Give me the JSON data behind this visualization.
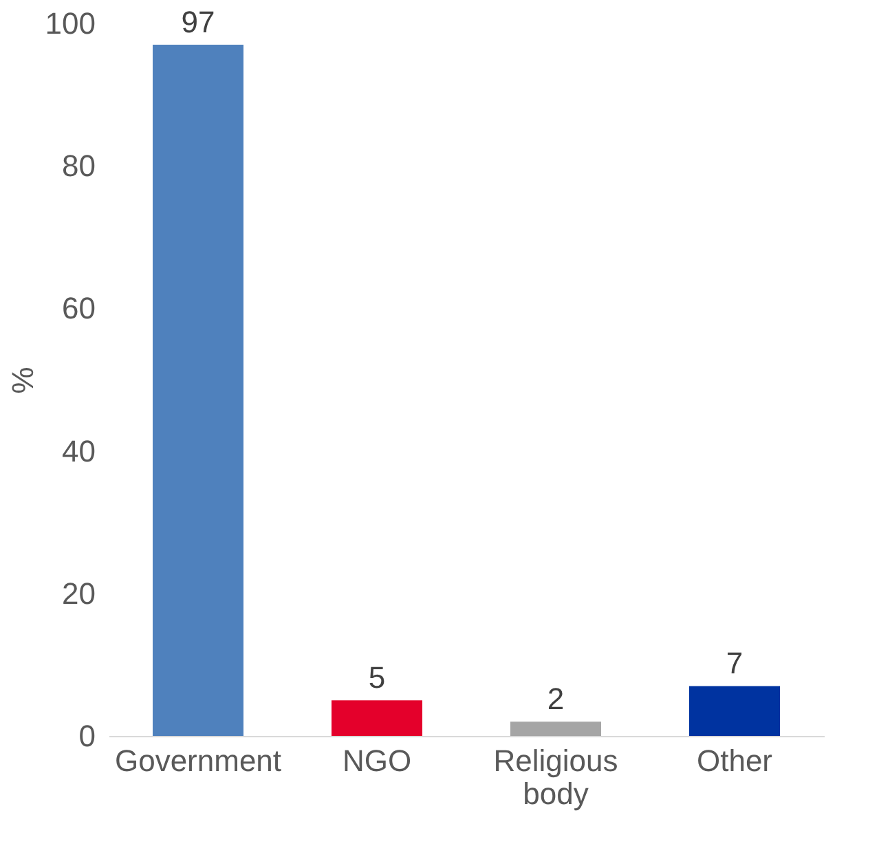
{
  "chart_data": {
    "type": "bar",
    "ylabel": "%",
    "categories": [
      "Government",
      "NGO",
      "Religious body",
      "Other"
    ],
    "values": [
      97,
      5,
      2,
      7
    ],
    "colors": [
      "#4f81bd",
      "#e4002b",
      "#a5a5a5",
      "#0033a0"
    ],
    "ylim": [
      0,
      100
    ],
    "yticks": [
      0,
      20,
      40,
      60,
      80,
      100
    ],
    "grid": false,
    "data_labels": true
  }
}
